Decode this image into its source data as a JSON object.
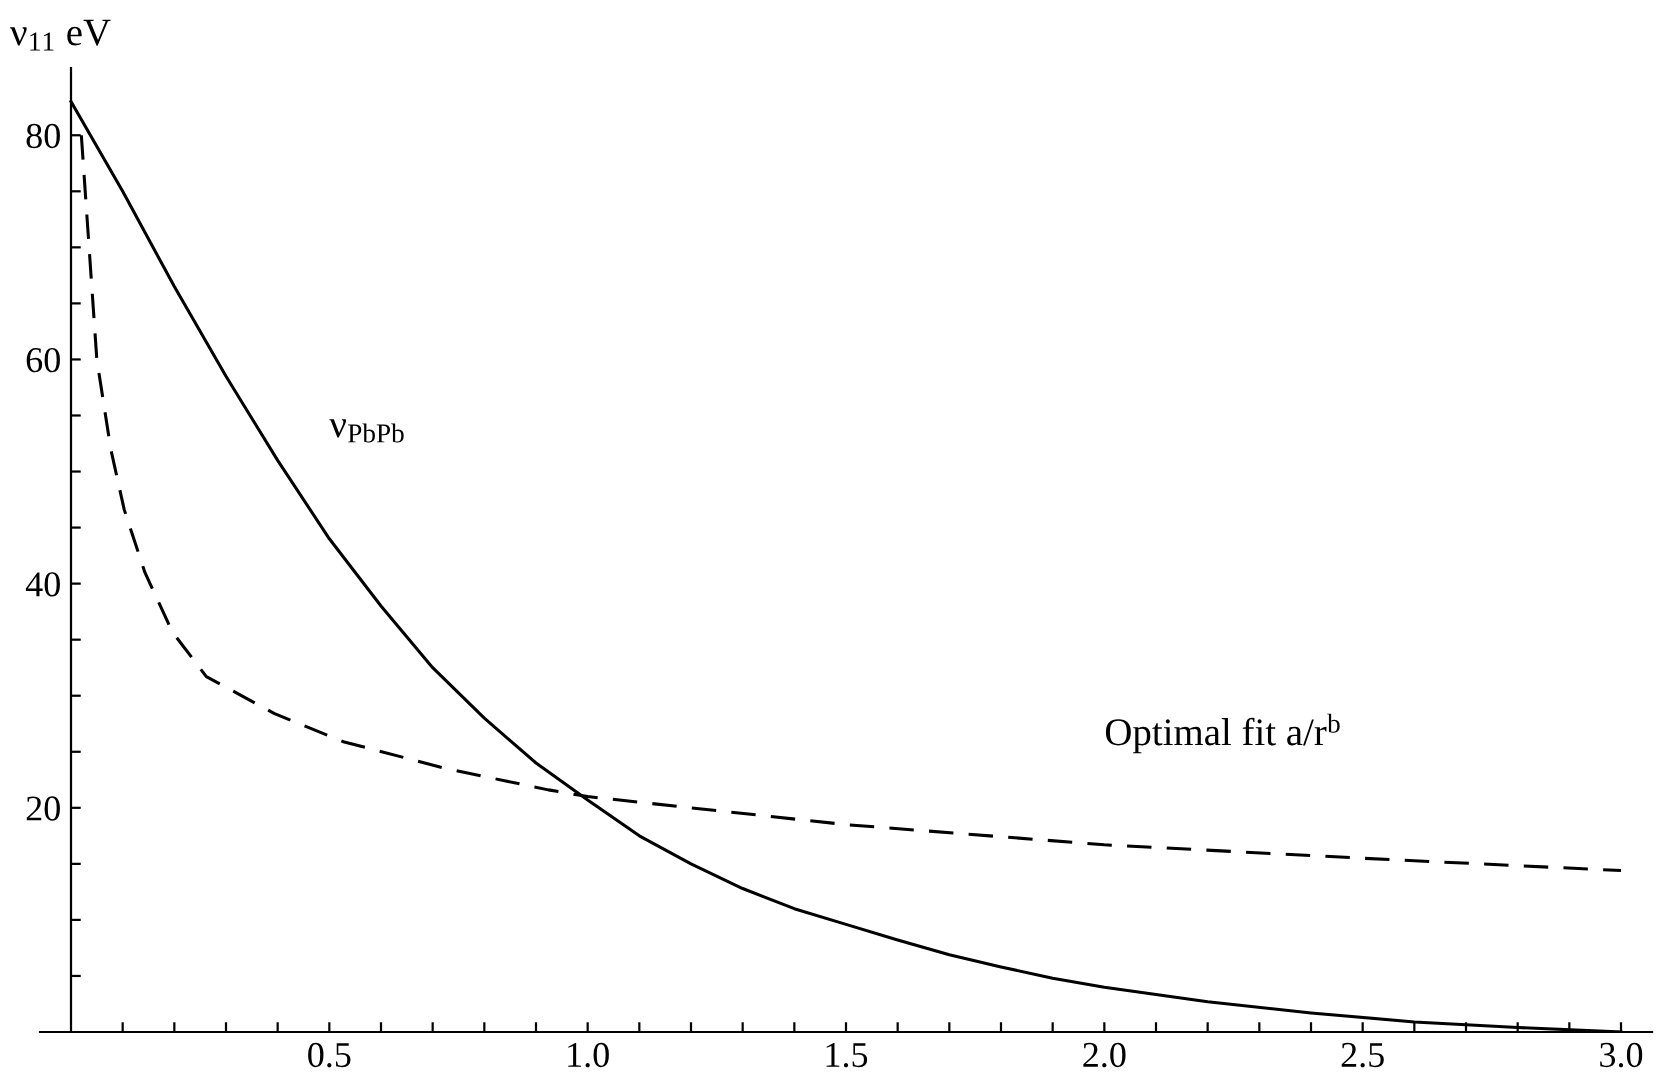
{
  "chart_data": {
    "type": "line",
    "ylabel": "ν$_{11}$ eV",
    "xlim": [
      -0.06,
      3.06
    ],
    "ylim": [
      0,
      86
    ],
    "xticks": [
      {
        "value": 0.1,
        "label": null
      },
      {
        "value": 0.2,
        "label": null
      },
      {
        "value": 0.3,
        "label": null
      },
      {
        "value": 0.4,
        "label": null
      },
      0.5,
      {
        "value": 0.6,
        "label": null
      },
      {
        "value": 0.7,
        "label": null
      },
      {
        "value": 0.8,
        "label": null
      },
      {
        "value": 0.9,
        "label": null
      },
      {
        "value": 1.0,
        "label": "1.0"
      },
      {
        "value": 1.1,
        "label": null
      },
      {
        "value": 1.2,
        "label": null
      },
      {
        "value": 1.3,
        "label": null
      },
      {
        "value": 1.4,
        "label": null
      },
      1.5,
      {
        "value": 1.6,
        "label": null
      },
      {
        "value": 1.7,
        "label": null
      },
      {
        "value": 1.8,
        "label": null
      },
      {
        "value": 1.9,
        "label": null
      },
      {
        "value": 2.0,
        "label": "2.0"
      },
      {
        "value": 2.1,
        "label": null
      },
      {
        "value": 2.2,
        "label": null
      },
      {
        "value": 2.3,
        "label": null
      },
      {
        "value": 2.4,
        "label": null
      },
      2.5,
      {
        "value": 2.6,
        "label": null
      },
      {
        "value": 2.7,
        "label": null
      },
      {
        "value": 2.8,
        "label": null
      },
      {
        "value": 2.9,
        "label": null
      },
      {
        "value": 3.0,
        "label": "3.0"
      }
    ],
    "yticks": [
      {
        "value": 5,
        "label": null
      },
      {
        "value": 10,
        "label": null
      },
      {
        "value": 15,
        "label": null
      },
      20,
      {
        "value": 25,
        "label": null
      },
      {
        "value": 30,
        "label": null
      },
      {
        "value": 35,
        "label": null
      },
      40,
      {
        "value": 45,
        "label": null
      },
      {
        "value": 50,
        "label": null
      },
      {
        "value": 55,
        "label": null
      },
      60,
      {
        "value": 65,
        "label": null
      },
      {
        "value": 70,
        "label": null
      },
      {
        "value": 75,
        "label": null
      },
      80
    ],
    "grid": false,
    "legend": false,
    "series": [
      {
        "name": "ν$_{PbPb}$",
        "color": "#000000",
        "line_style": "solid",
        "x": [
          0,
          0.1,
          0.2,
          0.3,
          0.4,
          0.5,
          0.6,
          0.7,
          0.8,
          0.9,
          1.0,
          1.1,
          1.2,
          1.3,
          1.4,
          1.5,
          1.6,
          1.7,
          1.8,
          1.9,
          2.0,
          2.2,
          2.4,
          2.6,
          2.8,
          3.0
        ],
        "values": [
          83,
          75,
          66.5,
          58.5,
          51,
          44,
          38,
          32.5,
          28,
          24,
          20.7,
          17.5,
          15,
          12.8,
          11,
          9.6,
          8.2,
          6.9,
          5.8,
          4.8,
          4,
          2.7,
          1.7,
          0.9,
          0.4,
          0
        ]
      },
      {
        "name": "Optimal fit a/r$^{b}$",
        "color": "#000000",
        "line_style": "dashed",
        "x": [
          0.02,
          0.05,
          0.077,
          0.103,
          0.143,
          0.196,
          0.262,
          0.394,
          0.527,
          0.726,
          0.924,
          1.0,
          1.5,
          2.0,
          2.5,
          3.0
        ],
        "values": [
          80,
          60,
          52,
          46.6,
          41,
          35.7,
          31.7,
          28.4,
          25.9,
          23.5,
          21.6,
          21,
          18.5,
          16.7,
          15.5,
          14.4
        ]
      }
    ]
  }
}
